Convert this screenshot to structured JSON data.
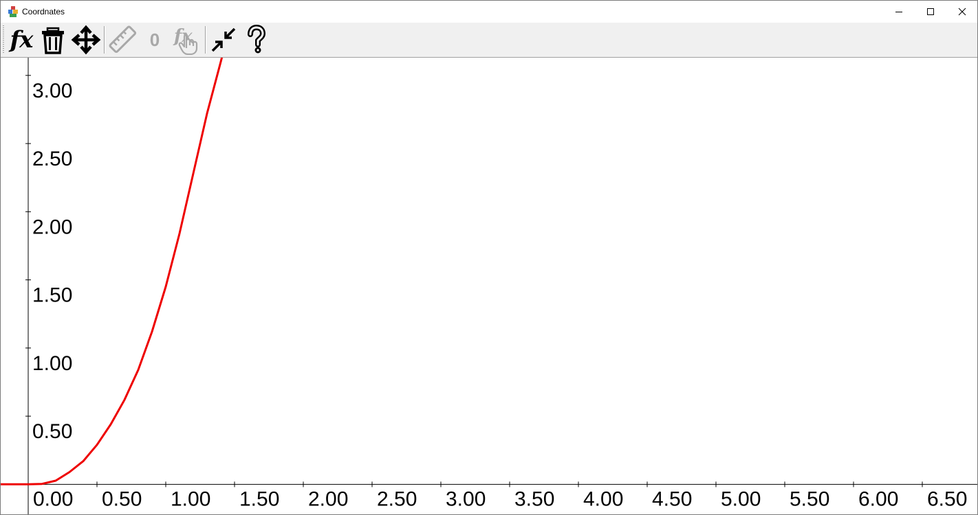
{
  "window": {
    "title": "Coordnates",
    "controls": {
      "minimize": "minimize",
      "maximize": "maximize",
      "close": "close"
    }
  },
  "toolbar": {
    "buttons": [
      {
        "id": "function",
        "label": "fx",
        "icon": "function-icon",
        "enabled": true
      },
      {
        "id": "delete",
        "icon": "trash-icon",
        "enabled": true
      },
      {
        "id": "move",
        "icon": "move-arrows-icon",
        "enabled": true
      },
      {
        "id": "measure",
        "icon": "ruler-icon",
        "enabled": false
      },
      {
        "id": "zero",
        "label": "0",
        "icon": "zero-icon",
        "enabled": false
      },
      {
        "id": "pick-function",
        "label": "fx",
        "icon": "function-pointer-icon",
        "enabled": false
      },
      {
        "id": "shrink",
        "icon": "shrink-arrows-icon",
        "enabled": true
      },
      {
        "id": "help",
        "icon": "question-mark-icon",
        "enabled": true
      }
    ]
  },
  "chart_data": {
    "type": "line",
    "title": "",
    "xlabel": "",
    "ylabel": "",
    "xlim": [
      -0.2,
      6.9
    ],
    "ylim": [
      -0.22,
      3.13
    ],
    "grid": false,
    "x_ticks": [
      0,
      0.5,
      1,
      1.5,
      2,
      2.5,
      3,
      3.5,
      4,
      4.5,
      5,
      5.5,
      6,
      6.5
    ],
    "x_tick_labels": [
      "0.00",
      "0.50",
      "1.00",
      "1.50",
      "2.00",
      "2.50",
      "3.00",
      "3.50",
      "4.00",
      "4.50",
      "5.00",
      "5.50",
      "6.00",
      "6.50"
    ],
    "y_ticks": [
      0.5,
      1,
      1.5,
      2,
      2.5,
      3
    ],
    "y_tick_labels": [
      "0.50",
      "1.00",
      "1.50",
      "2.00",
      "2.50",
      "3.00"
    ],
    "series": [
      {
        "color": "#ee0000",
        "x": [
          -0.2,
          0,
          0.1,
          0.2,
          0.3,
          0.4,
          0.5,
          0.6,
          0.7,
          0.8,
          0.9,
          1.0,
          1.1,
          1.2,
          1.3,
          1.4,
          1.47
        ],
        "y": [
          0,
          0,
          0.003,
          0.027,
          0.09,
          0.17,
          0.29,
          0.44,
          0.62,
          0.84,
          1.12,
          1.45,
          1.84,
          2.28,
          2.72,
          3.1,
          3.38
        ]
      }
    ],
    "colors": {
      "axis": "#000000",
      "curve": "#ee0000"
    }
  }
}
